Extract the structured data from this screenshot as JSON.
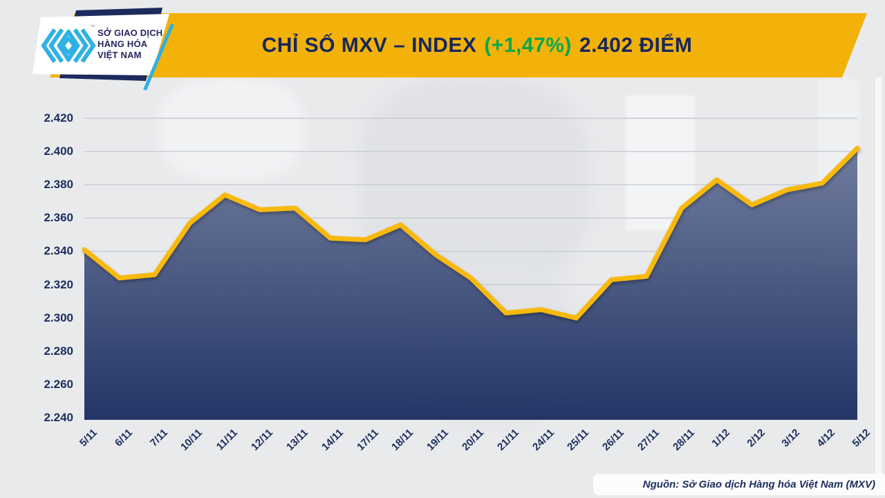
{
  "header": {
    "logo": {
      "line1": "SỞ GIAO DỊCH",
      "line2": "HÀNG HÓA",
      "line3": "VIỆT NAM",
      "tm": "™"
    },
    "title": {
      "part1": "CHỈ SỐ MXV – INDEX",
      "change": "(+1,47%)",
      "part2": "2.402 ĐIỂM"
    },
    "colors": {
      "banner_yellow": "#F3B20A",
      "title_navy": "#17275C",
      "change_green": "#00A850",
      "logo_cyan": "#2FB1E3"
    }
  },
  "chart_data": {
    "type": "area",
    "title": "CHỈ SỐ MXV – INDEX (+1,47%) 2.402 ĐIỂM",
    "categories": [
      "5/11",
      "6/11",
      "7/11",
      "10/11",
      "11/11",
      "12/11",
      "13/11",
      "14/11",
      "17/11",
      "18/11",
      "19/11",
      "20/11",
      "21/11",
      "24/11",
      "25/11",
      "26/11",
      "27/11",
      "28/11",
      "1/12",
      "2/12",
      "3/12",
      "4/12",
      "5/12"
    ],
    "values": [
      2.341,
      2.324,
      2.326,
      2.357,
      2.374,
      2.365,
      2.366,
      2.348,
      2.347,
      2.356,
      2.338,
      2.324,
      2.303,
      2.305,
      2.3,
      2.323,
      2.325,
      2.366,
      2.383,
      2.368,
      2.377,
      2.381,
      2.402
    ],
    "last_value": 2.402,
    "change_pct": "+1,47%",
    "xlabel": "",
    "ylabel": "",
    "ylim": [
      2.24,
      2.42
    ],
    "ytick_step": 0.02,
    "ytick_labels": [
      "2.420",
      "2.400",
      "2.380",
      "2.360",
      "2.340",
      "2.320",
      "2.300",
      "2.280",
      "2.260",
      "2.240"
    ],
    "grid": true,
    "legend": "none",
    "line_color": "#F8B90C",
    "grid_color": "#C7CAD1",
    "fill_gradient_top": "#6F7C9E",
    "fill_gradient_bottom": "#16285C",
    "label_color": "#1A2D5C"
  },
  "footer": {
    "source": "Nguồn: Sở Giao dịch Hàng hóa Việt Nam (MXV)"
  }
}
